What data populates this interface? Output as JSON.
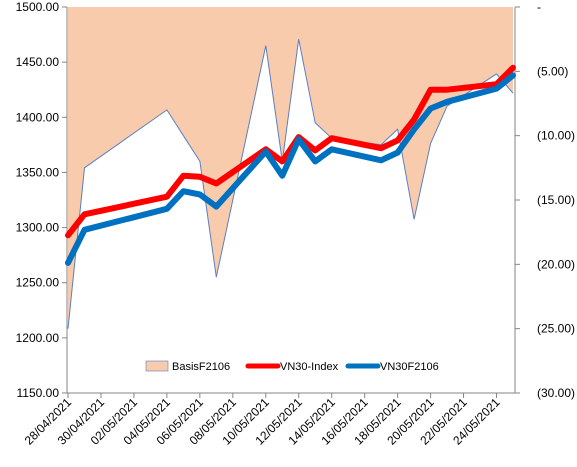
{
  "chart_data": {
    "type": "line",
    "title": "",
    "left_axis": {
      "min": 1150,
      "max": 1500,
      "step": 50,
      "tick_labels": [
        "1150.00",
        "1200.00",
        "1250.00",
        "1300.00",
        "1350.00",
        "1400.00",
        "1450.00",
        "1500.00"
      ]
    },
    "right_axis": {
      "min": -30,
      "max": 0,
      "step": 5,
      "tick_labels": [
        "-",
        "(5.00)",
        "(10.00)",
        "(15.00)",
        "(20.00)",
        "(25.00)",
        "(30.00)"
      ]
    },
    "x_tick_labels": [
      "28/04/2021",
      "30/04/2021",
      "02/05/2021",
      "04/05/2021",
      "06/05/2021",
      "08/05/2021",
      "10/05/2021",
      "12/05/2021",
      "14/05/2021",
      "16/05/2021",
      "18/05/2021",
      "20/05/2021",
      "22/05/2021",
      "24/05/2021"
    ],
    "x": [
      "28/04/2021",
      "29/04/2021",
      "04/05/2021",
      "05/05/2021",
      "06/05/2021",
      "07/05/2021",
      "10/05/2021",
      "11/05/2021",
      "12/05/2021",
      "13/05/2021",
      "14/05/2021",
      "17/05/2021",
      "18/05/2021",
      "19/05/2021",
      "20/05/2021",
      "21/05/2021",
      "24/05/2021",
      "25/05/2021"
    ],
    "series": [
      {
        "name": "BasisF2106",
        "kind": "area",
        "axis": "right",
        "color": "#f8cbad",
        "edge_color": "#5b7fbf",
        "values": [
          -25.0,
          -12.5,
          -8.0,
          -10.0,
          -12.0,
          -21.0,
          -3.0,
          -12.0,
          -2.5,
          -9.0,
          -10.2,
          -10.7,
          -9.5,
          -16.5,
          -10.6,
          -7.7,
          -5.2,
          -6.7
        ]
      },
      {
        "name": "VN30-Index",
        "kind": "line",
        "axis": "left",
        "color": "#ff0000",
        "values": [
          1293,
          1312,
          1328,
          1347,
          1346,
          1340,
          1371,
          1360,
          1382,
          1370,
          1381,
          1372,
          1379,
          1398,
          1425,
          1425,
          1430,
          1445
        ]
      },
      {
        "name": "VN30F2106",
        "kind": "line",
        "axis": "left",
        "color": "#0070c0",
        "values": [
          1268,
          1298,
          1317,
          1333,
          1330,
          1319,
          1369,
          1347,
          1380,
          1360,
          1371,
          1361,
          1368,
          1389,
          1408,
          1414,
          1426,
          1438
        ]
      }
    ],
    "legend": {
      "placement": "bottom-center"
    },
    "grid": {
      "y": false,
      "x": false
    }
  }
}
